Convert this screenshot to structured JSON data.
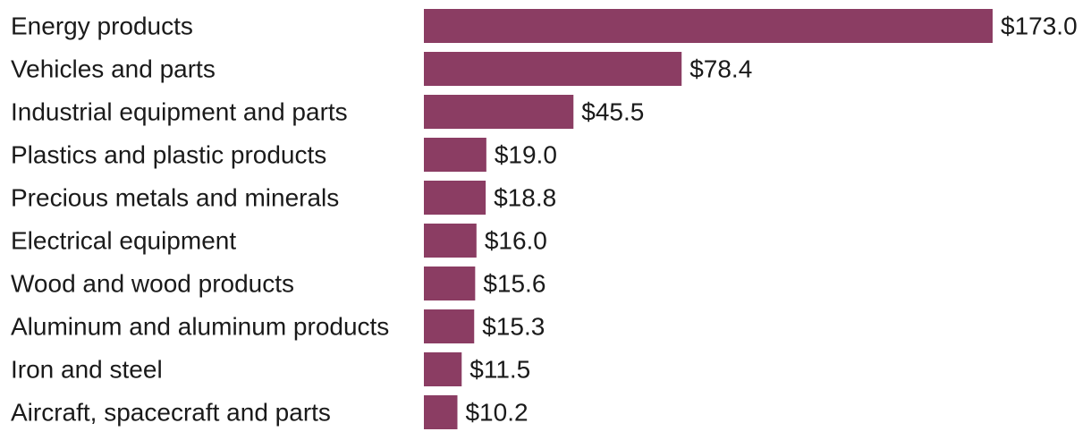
{
  "chart_data": {
    "type": "bar",
    "orientation": "horizontal",
    "categories": [
      "Energy products",
      "Vehicles and parts",
      "Industrial equipment and parts",
      "Plastics and plastic products",
      "Precious metals and minerals",
      "Electrical equipment",
      "Wood and wood products",
      "Aluminum and aluminum products",
      "Iron and steel",
      "Aircraft, spacecraft and parts"
    ],
    "values": [
      173.0,
      78.4,
      45.5,
      19.0,
      18.8,
      16.0,
      15.6,
      15.3,
      11.5,
      10.2
    ],
    "value_labels": [
      "$173.0",
      "$78.4",
      "$45.5",
      "$19.0",
      "$18.8",
      "$16.0",
      "$15.6",
      "$15.3",
      "$11.5",
      "$10.2"
    ],
    "xlim": [
      0,
      173.0
    ],
    "grid": false,
    "title": "",
    "xlabel": "",
    "ylabel": "",
    "bar_color": "#8b3d63"
  }
}
